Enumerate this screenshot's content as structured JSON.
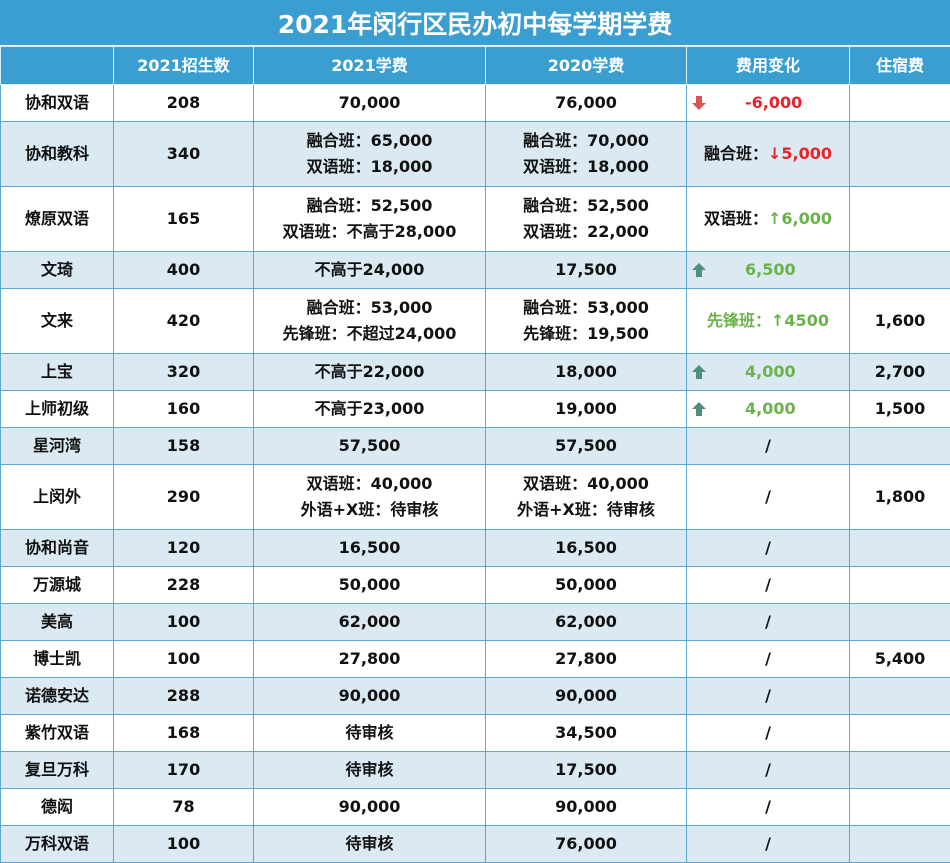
{
  "title": "2021年闵行区民办初中每学期学费",
  "headers": [
    "",
    "2021招生数",
    "2021学费",
    "2020学费",
    "费用变化",
    "住宿费"
  ],
  "colors": {
    "header_bg": "#3a9ed0",
    "row_alt": "#dbe9f3",
    "down": "#e8232b",
    "up": "#6bb24a",
    "arrow_down": "#d9534f",
    "arrow_up": "#4f8f7a"
  },
  "rows": [
    {
      "name": "协和双语",
      "enroll": "208",
      "fee2021": [
        "70,000"
      ],
      "fee2020": [
        "76,000"
      ],
      "change": {
        "type": "icon-down",
        "text": "-6,000",
        "color": "red"
      },
      "board": ""
    },
    {
      "name": "协和教科",
      "enroll": "340",
      "fee2021": [
        "融合班：65,000",
        "双语班：18,000"
      ],
      "fee2020": [
        "融合班：70,000",
        "双语班：18,000"
      ],
      "change": {
        "type": "label",
        "label": "融合班：",
        "text": "↓5,000",
        "color": "red"
      },
      "board": ""
    },
    {
      "name": "燎原双语",
      "enroll": "165",
      "fee2021": [
        "融合班：52,500",
        "双语班：不高于28,000"
      ],
      "fee2020": [
        "融合班：52,500",
        "双语班：22,000"
      ],
      "change": {
        "type": "label",
        "label": "双语班：",
        "text": "↑6,000",
        "color": "green"
      },
      "board": ""
    },
    {
      "name": "文琦",
      "enroll": "400",
      "fee2021": [
        "不高于24,000"
      ],
      "fee2020": [
        "17,500"
      ],
      "change": {
        "type": "icon-up",
        "text": "6,500",
        "color": "green"
      },
      "board": ""
    },
    {
      "name": "文来",
      "enroll": "420",
      "fee2021": [
        "融合班：53,000",
        "先锋班：不超过24,000"
      ],
      "fee2020": [
        "融合班：53,000",
        "先锋班：19,500"
      ],
      "change": {
        "type": "plain",
        "text": "先锋班：↑4500",
        "color": "green"
      },
      "board": "1,600"
    },
    {
      "name": "上宝",
      "enroll": "320",
      "fee2021": [
        "不高于22,000"
      ],
      "fee2020": [
        "18,000"
      ],
      "change": {
        "type": "icon-up",
        "text": "4,000",
        "color": "green"
      },
      "board": "2,700"
    },
    {
      "name": "上师初级",
      "enroll": "160",
      "fee2021": [
        "不高于23,000"
      ],
      "fee2020": [
        "19,000"
      ],
      "change": {
        "type": "icon-up",
        "text": "4,000",
        "color": "green"
      },
      "board": "1,500"
    },
    {
      "name": "星河湾",
      "enroll": "158",
      "fee2021": [
        "57,500"
      ],
      "fee2020": [
        "57,500"
      ],
      "change": {
        "type": "slash",
        "text": "/"
      },
      "board": ""
    },
    {
      "name": "上闵外",
      "enroll": "290",
      "fee2021": [
        "双语班：40,000",
        "外语+X班：待审核"
      ],
      "fee2020": [
        "双语班：40,000",
        "外语+X班：待审核"
      ],
      "change": {
        "type": "slash",
        "text": "/"
      },
      "board": "1,800"
    },
    {
      "name": "协和尚音",
      "enroll": "120",
      "fee2021": [
        "16,500"
      ],
      "fee2020": [
        "16,500"
      ],
      "change": {
        "type": "slash",
        "text": "/"
      },
      "board": ""
    },
    {
      "name": "万源城",
      "enroll": "228",
      "fee2021": [
        "50,000"
      ],
      "fee2020": [
        "50,000"
      ],
      "change": {
        "type": "slash",
        "text": "/"
      },
      "board": ""
    },
    {
      "name": "美高",
      "enroll": "100",
      "fee2021": [
        "62,000"
      ],
      "fee2020": [
        "62,000"
      ],
      "change": {
        "type": "slash",
        "text": "/"
      },
      "board": ""
    },
    {
      "name": "博士凯",
      "enroll": "100",
      "fee2021": [
        "27,800"
      ],
      "fee2020": [
        "27,800"
      ],
      "change": {
        "type": "slash",
        "text": "/"
      },
      "board": "5,400"
    },
    {
      "name": "诺德安达",
      "enroll": "288",
      "fee2021": [
        "90,000"
      ],
      "fee2020": [
        "90,000"
      ],
      "change": {
        "type": "slash",
        "text": "/"
      },
      "board": ""
    },
    {
      "name": "紫竹双语",
      "enroll": "168",
      "fee2021": [
        "待审核"
      ],
      "fee2020": [
        "34,500"
      ],
      "change": {
        "type": "slash",
        "text": "/"
      },
      "board": ""
    },
    {
      "name": "复旦万科",
      "enroll": "170",
      "fee2021": [
        "待审核"
      ],
      "fee2020": [
        "17,500"
      ],
      "change": {
        "type": "slash",
        "text": "/"
      },
      "board": ""
    },
    {
      "name": "德闳",
      "enroll": "78",
      "fee2021": [
        "90,000"
      ],
      "fee2020": [
        "90,000"
      ],
      "change": {
        "type": "slash",
        "text": "/"
      },
      "board": ""
    },
    {
      "name": "万科双语",
      "enroll": "100",
      "fee2021": [
        "待审核"
      ],
      "fee2020": [
        "76,000"
      ],
      "change": {
        "type": "slash",
        "text": "/"
      },
      "board": ""
    }
  ]
}
